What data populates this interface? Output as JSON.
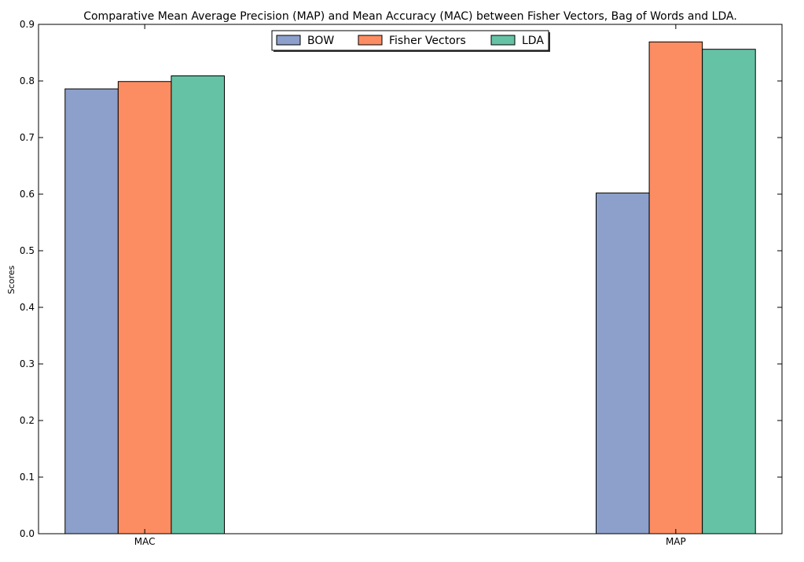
{
  "chart_data": {
    "type": "bar",
    "title": "Comparative Mean Average Precision (MAP) and Mean Accuracy (MAC) between Fisher Vectors, Bag of Words and LDA.",
    "xlabel": "",
    "ylabel": "Scores",
    "categories": [
      "MAC",
      "MAP"
    ],
    "series": [
      {
        "name": "BOW",
        "color": "#8da0cb",
        "values": [
          0.786,
          0.602
        ]
      },
      {
        "name": "Fisher Vectors",
        "color": "#fc8d62",
        "values": [
          0.799,
          0.869
        ]
      },
      {
        "name": "LDA",
        "color": "#66c2a5",
        "values": [
          0.809,
          0.856
        ]
      }
    ],
    "ylim": [
      0,
      0.9
    ],
    "yticks": [
      "0.0",
      "0.1",
      "0.2",
      "0.3",
      "0.4",
      "0.5",
      "0.6",
      "0.7",
      "0.8",
      "0.9"
    ],
    "legend_position": "top-center",
    "grid": false
  }
}
